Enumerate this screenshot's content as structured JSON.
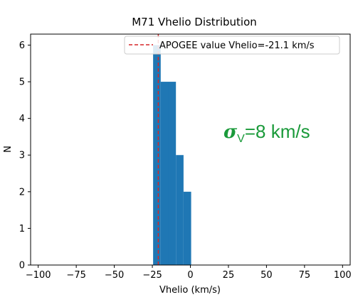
{
  "chart_data": {
    "type": "bar",
    "title": "M71 Vhelio Distribution",
    "xlabel": "Vhelio (km/s)",
    "ylabel": "N",
    "xlim": [
      -105,
      105
    ],
    "ylim": [
      0,
      6.3
    ],
    "xticks": [
      -100,
      -75,
      -50,
      -25,
      0,
      25,
      50,
      75,
      100
    ],
    "yticks": [
      0,
      1,
      2,
      3,
      4,
      5,
      6
    ],
    "bar_color": "#1f77b4",
    "bins": [
      {
        "x0": -24.5,
        "x1": -19.5,
        "value": 6
      },
      {
        "x0": -19.5,
        "x1": -14.5,
        "value": 5
      },
      {
        "x0": -14.5,
        "x1": -9.5,
        "value": 5
      },
      {
        "x0": -9.5,
        "x1": -4.5,
        "value": 3
      },
      {
        "x0": -4.5,
        "x1": 0.5,
        "value": 2
      }
    ],
    "reference_line": {
      "x": -21.1,
      "color": "#d62728",
      "style": "dashed",
      "label": "APOGEE value Vhelio=-21.1 km/s"
    },
    "legend": {
      "position": "top-right"
    },
    "annotation": {
      "symbol": "σ",
      "subscript": "V",
      "text": "=8 km/s",
      "color": "#1a9a3a"
    },
    "grid": false
  }
}
